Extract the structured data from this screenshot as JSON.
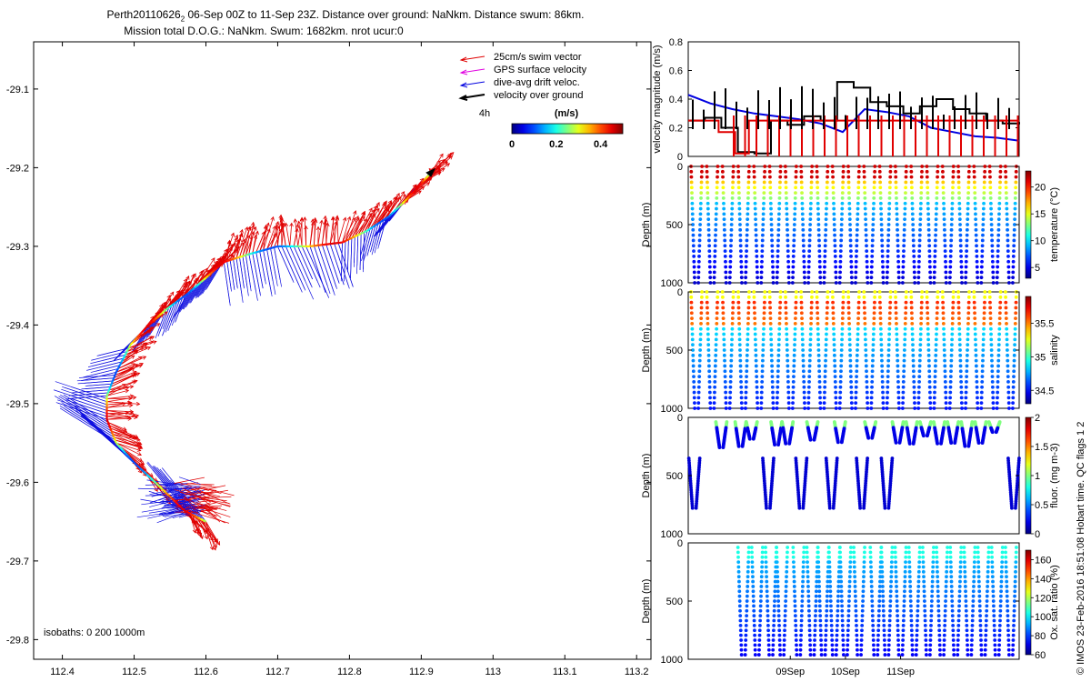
{
  "header": {
    "title_prefix": "Perth20110626",
    "title_sub": "2",
    "title_suffix": " 06-Sep 00Z to 11-Sep 23Z. Distance over ground: NaNkm. Distance swum: 86km.",
    "title_line2": "Mission total D.O.G.: NaNkm. Swum: 1682km. nrot ucur:0"
  },
  "footer_note": "© IMOS 23-Feb-2016 18:51:08 Hobart time. QC flags 1  2",
  "chart_data": [
    {
      "type": "scatter",
      "id": "track_map",
      "x_ticks": [
        112.4,
        112.5,
        112.6,
        112.7,
        112.8,
        112.9,
        113,
        113.1,
        113.2
      ],
      "x_tick_labels": [
        "112.4",
        "112.5",
        "112.6",
        "112.7",
        "112.8",
        "112.9",
        "113",
        "113.1",
        "113.2"
      ],
      "y_ticks": [
        -29.1,
        -29.2,
        -29.3,
        -29.4,
        -29.5,
        -29.6,
        -29.7,
        -29.8
      ],
      "y_tick_labels": [
        "-29.1",
        "-29.2",
        "-29.3",
        "-29.4",
        "-29.5",
        "-29.6",
        "-29.7",
        "-29.8"
      ],
      "xlim": [
        112.36,
        113.22
      ],
      "ylim": [
        -29.825,
        -29.04
      ],
      "legend": {
        "placement": "top-right",
        "entries": [
          {
            "label": "25cm/s swim vector",
            "color": "#e00000"
          },
          {
            "label": "GPS surface velocity",
            "color": "#e000e0"
          },
          {
            "label": "dive-avg drift veloc.",
            "color": "#0000e0"
          },
          {
            "label": "velocity over ground",
            "color": "#000000"
          }
        ],
        "time_label": "4h"
      },
      "colorbar": {
        "title": "(m/s)",
        "tick_labels": [
          "0",
          "0.2",
          "0.4"
        ],
        "range": [
          0,
          0.5
        ]
      },
      "isobaths_label": "isobaths: 0    200  1000m",
      "track": [
        [
          112.6,
          -29.65
        ],
        [
          112.57,
          -29.636
        ],
        [
          112.535,
          -29.605
        ],
        [
          112.5,
          -29.575
        ],
        [
          112.475,
          -29.55
        ],
        [
          112.462,
          -29.52
        ],
        [
          112.462,
          -29.49
        ],
        [
          112.475,
          -29.46
        ],
        [
          112.495,
          -29.425
        ],
        [
          112.52,
          -29.4
        ],
        [
          112.545,
          -29.38
        ],
        [
          112.575,
          -29.36
        ],
        [
          112.6,
          -29.34
        ],
        [
          112.625,
          -29.32
        ],
        [
          112.66,
          -29.31
        ],
        [
          112.7,
          -29.3
        ],
        [
          112.745,
          -29.3
        ],
        [
          112.79,
          -29.295
        ],
        [
          112.825,
          -29.28
        ],
        [
          112.855,
          -29.262
        ],
        [
          112.88,
          -29.24
        ],
        [
          112.9,
          -29.22
        ],
        [
          112.915,
          -29.205
        ]
      ]
    },
    {
      "type": "line",
      "id": "velocity_panel",
      "ylabel": "velocity magnitude (m/s)",
      "ylim": [
        0,
        0.8
      ],
      "y_ticks": [
        0,
        0.2,
        0.4,
        0.6,
        0.8
      ],
      "y_tick_labels": [
        "0",
        "0.2",
        "0.4",
        "0.6",
        "0.8"
      ],
      "xlim": [
        0,
        6
      ],
      "series": [
        {
          "color": "#0000e0",
          "x": [
            0,
            0.4,
            0.8,
            1.2,
            1.6,
            2.0,
            2.4,
            2.8,
            3.2,
            3.6,
            4.0,
            4.4,
            4.8,
            5.2,
            5.6,
            6.0
          ],
          "values": [
            0.43,
            0.37,
            0.33,
            0.3,
            0.28,
            0.26,
            0.23,
            0.17,
            0.33,
            0.31,
            0.28,
            0.2,
            0.17,
            0.14,
            0.13,
            0.11
          ]
        },
        {
          "color": "#000000",
          "x": [
            0,
            0.3,
            0.6,
            0.9,
            1.2,
            1.5,
            1.8,
            2.1,
            2.4,
            2.7,
            3.0,
            3.3,
            3.6,
            3.9,
            4.2,
            4.5,
            4.8,
            5.1,
            5.4,
            5.7,
            6.0
          ],
          "values": [
            0.25,
            0.27,
            0.2,
            0.03,
            0.02,
            0.25,
            0.22,
            0.28,
            0.25,
            0.52,
            0.48,
            0.38,
            0.35,
            0.3,
            0.35,
            0.4,
            0.33,
            0.3,
            0.25,
            0.23,
            0.24
          ]
        },
        {
          "color": "#e00000",
          "x": [
            0,
            0.3,
            0.55,
            0.85,
            1.1,
            6.0
          ],
          "values": [
            0.25,
            0.25,
            0.17,
            0.02,
            0.25,
            0.25
          ]
        }
      ]
    },
    {
      "type": "scatter",
      "id": "temperature_panel",
      "ylabel": "Depth (m)",
      "ylim": [
        1000,
        0
      ],
      "y_tick_labels": [
        "0",
        "500",
        "1000"
      ],
      "colorbar": {
        "label": "temperature (°C)",
        "tick_labels": [
          "5",
          "10",
          "15",
          "20"
        ],
        "range": [
          3,
          23
        ]
      },
      "dives": 21,
      "max_depth": 1000
    },
    {
      "type": "scatter",
      "id": "salinity_panel",
      "ylabel": "Depth (m)",
      "ylim": [
        1000,
        0
      ],
      "y_tick_labels": [
        "0",
        "500",
        "1000"
      ],
      "colorbar": {
        "label": "salinity",
        "tick_labels": [
          "34.5",
          "35",
          "35.5"
        ],
        "range": [
          34.3,
          35.9
        ]
      },
      "dives": 21,
      "max_depth": 1000
    },
    {
      "type": "scatter",
      "id": "fluorescence_panel",
      "ylabel": "Depth (m)",
      "ylim": [
        1000,
        0
      ],
      "y_tick_labels": [
        "0",
        "500",
        "1000"
      ],
      "colorbar": {
        "label": "fluor. (mg m-3)",
        "tick_labels": [
          "0",
          "0.5",
          "1",
          "1.5",
          "2"
        ],
        "range": [
          0,
          2
        ]
      },
      "deep_dive_days": [
        0.06,
        1.4,
        2.0,
        2.55,
        3.1,
        3.55,
        5.85
      ],
      "shallow_dive_days": [
        0.6,
        0.95,
        1.15,
        1.6,
        1.8,
        2.25,
        2.75,
        3.3,
        3.8,
        4.05,
        4.3,
        4.55,
        4.8,
        5.05,
        5.3,
        5.55
      ]
    },
    {
      "type": "scatter",
      "id": "oxygen_panel",
      "ylabel": "Depth (m)",
      "ylim": [
        1000,
        0
      ],
      "y_tick_labels": [
        "0",
        "500",
        "1000"
      ],
      "colorbar": {
        "label": "Ox. sat. ratio (%)",
        "tick_labels": [
          "60",
          "80",
          "100",
          "120",
          "140",
          "160"
        ],
        "range": [
          60,
          170
        ]
      },
      "x_tick_labels": [
        "09Sep",
        "10Sep",
        "11Sep"
      ],
      "x_tick_days": [
        1.85,
        2.85,
        3.85
      ],
      "dive_days": [
        1.0,
        1.25,
        1.5,
        1.7,
        2.0,
        2.25,
        2.45,
        2.65,
        2.85,
        3.1,
        3.4,
        3.6,
        3.85,
        4.1,
        4.35,
        4.6,
        4.85,
        5.1,
        5.35,
        5.6,
        5.85
      ]
    }
  ]
}
